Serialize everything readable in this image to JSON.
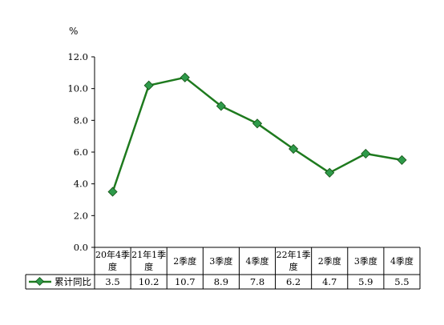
{
  "chart_data": {
    "type": "line",
    "unit": "%",
    "categories": [
      [
        "20年4季",
        "度"
      ],
      [
        "21年1季",
        "度"
      ],
      [
        "2季度"
      ],
      [
        "3季度"
      ],
      [
        "4季度"
      ],
      [
        "22年1季",
        "度"
      ],
      [
        "2季度"
      ],
      [
        "3季度"
      ],
      [
        "4季度"
      ]
    ],
    "series": [
      {
        "name": "累计同比",
        "values": [
          3.5,
          10.2,
          10.7,
          8.9,
          7.8,
          6.2,
          4.7,
          5.9,
          5.5
        ],
        "value_labels": [
          "3.5",
          "10.2",
          "10.7",
          "8.9",
          "7.8",
          "6.2",
          "4.7",
          "5.9",
          "5.5"
        ],
        "color": "#1e7a1e",
        "marker_color": "#2e9a4a",
        "marker": "diamond"
      }
    ],
    "ylim": [
      0,
      12
    ],
    "yticks": [
      "0.0",
      "2.0",
      "4.0",
      "6.0",
      "8.0",
      "10.0",
      "12.0"
    ],
    "grid": false,
    "legend": "data-table"
  }
}
